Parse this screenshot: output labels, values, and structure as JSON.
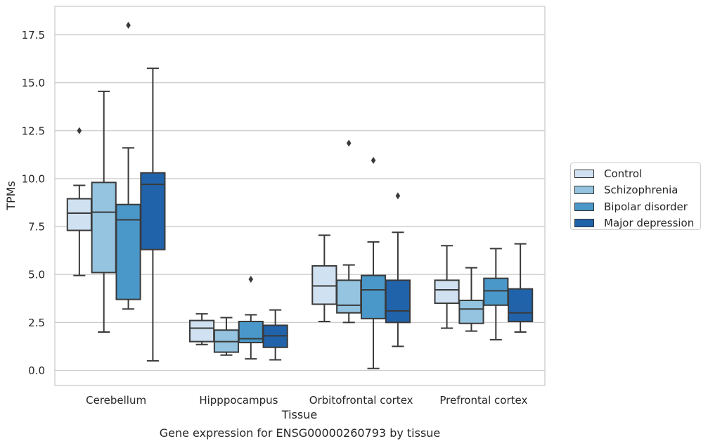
{
  "caption": "Gene expression for ENSG00000260793 by tissue",
  "chart_data": {
    "type": "boxplot",
    "xlabel": "Tissue",
    "ylabel": "TPMs",
    "ylim": [
      -0.8,
      18.9
    ],
    "yticks": [
      "0.0",
      "2.5",
      "5.0",
      "7.5",
      "10.0",
      "12.5",
      "15.0",
      "17.5"
    ],
    "grid": "horizontal",
    "legend_position": "right",
    "categories": [
      "Cerebellum",
      "Hipppocampus",
      "Orbitofrontal cortex",
      "Prefrontal cortex"
    ],
    "series": [
      {
        "name": "Control",
        "color": "#d0e1f2",
        "boxes": [
          {
            "whisker_low": 4.95,
            "q1": 7.3,
            "median": 8.2,
            "q3": 8.95,
            "whisker_high": 9.65,
            "outliers": [
              12.5
            ]
          },
          {
            "whisker_low": 1.35,
            "q1": 1.5,
            "median": 2.2,
            "q3": 2.6,
            "whisker_high": 2.95,
            "outliers": []
          },
          {
            "whisker_low": 2.55,
            "q1": 3.45,
            "median": 4.4,
            "q3": 5.45,
            "whisker_high": 7.05,
            "outliers": []
          },
          {
            "whisker_low": 2.2,
            "q1": 3.5,
            "median": 4.2,
            "q3": 4.7,
            "whisker_high": 6.5,
            "outliers": []
          }
        ]
      },
      {
        "name": "Schizophrenia",
        "color": "#94c4df",
        "boxes": [
          {
            "whisker_low": 2.0,
            "q1": 5.1,
            "median": 8.25,
            "q3": 9.8,
            "whisker_high": 14.55,
            "outliers": []
          },
          {
            "whisker_low": 0.8,
            "q1": 0.95,
            "median": 1.5,
            "q3": 2.1,
            "whisker_high": 2.75,
            "outliers": []
          },
          {
            "whisker_low": 2.5,
            "q1": 3.0,
            "median": 3.4,
            "q3": 4.7,
            "whisker_high": 5.5,
            "outliers": [
              11.85
            ]
          },
          {
            "whisker_low": 2.05,
            "q1": 2.45,
            "median": 3.2,
            "q3": 3.65,
            "whisker_high": 5.35,
            "outliers": []
          }
        ]
      },
      {
        "name": "Bipolar disorder",
        "color": "#4a98c9",
        "boxes": [
          {
            "whisker_low": 3.2,
            "q1": 3.7,
            "median": 7.85,
            "q3": 8.65,
            "whisker_high": 11.6,
            "outliers": [
              18.0
            ]
          },
          {
            "whisker_low": 0.6,
            "q1": 1.45,
            "median": 1.65,
            "q3": 2.55,
            "whisker_high": 2.9,
            "outliers": [
              4.75
            ]
          },
          {
            "whisker_low": 0.1,
            "q1": 2.7,
            "median": 4.2,
            "q3": 4.95,
            "whisker_high": 6.7,
            "outliers": [
              10.95
            ]
          },
          {
            "whisker_low": 1.6,
            "q1": 3.4,
            "median": 4.15,
            "q3": 4.8,
            "whisker_high": 6.35,
            "outliers": []
          }
        ]
      },
      {
        "name": "Major depression",
        "color": "#2163aa",
        "boxes": [
          {
            "whisker_low": 0.5,
            "q1": 6.3,
            "median": 9.7,
            "q3": 10.3,
            "whisker_high": 15.75,
            "outliers": []
          },
          {
            "whisker_low": 0.55,
            "q1": 1.2,
            "median": 1.8,
            "q3": 2.35,
            "whisker_high": 3.15,
            "outliers": []
          },
          {
            "whisker_low": 1.25,
            "q1": 2.5,
            "median": 3.1,
            "q3": 4.7,
            "whisker_high": 7.2,
            "outliers": [
              9.1
            ]
          },
          {
            "whisker_low": 2.0,
            "q1": 2.55,
            "median": 3.0,
            "q3": 4.25,
            "whisker_high": 6.6,
            "outliers": []
          }
        ]
      }
    ]
  }
}
